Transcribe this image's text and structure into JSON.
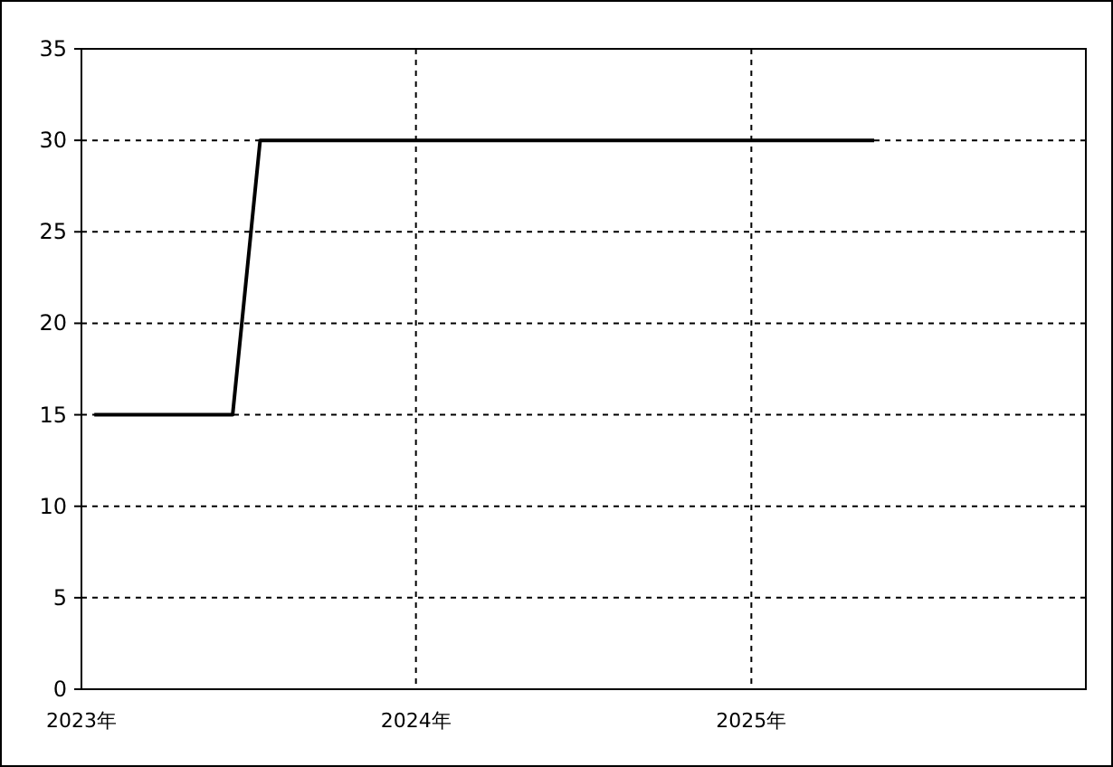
{
  "chart_data": {
    "type": "line",
    "x": [
      "2023-01-15",
      "2023-06-15",
      "2023-07-15",
      "2025-05-15"
    ],
    "series": [
      {
        "color": "#000000",
        "values": [
          15,
          15,
          30,
          30
        ]
      }
    ],
    "xlim": [
      "2023-01-01",
      "2026-01-01"
    ],
    "xticks": [
      {
        "value": "2023-01-01",
        "label": "2023年"
      },
      {
        "value": "2024-01-01",
        "label": "2024年"
      },
      {
        "value": "2025-01-01",
        "label": "2025年"
      },
      {
        "value": "2026-01-01",
        "label": null
      }
    ],
    "ylim": [
      0,
      35
    ],
    "yticks": [
      0,
      5,
      10,
      15,
      20,
      25,
      30,
      35
    ],
    "grid": true
  }
}
